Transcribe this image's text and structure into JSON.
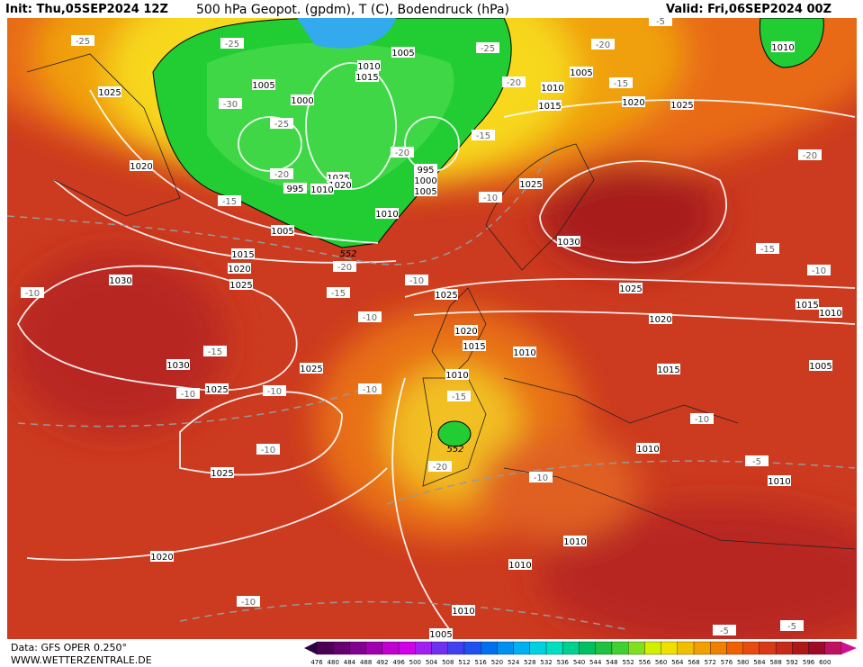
{
  "header": {
    "init": "Init: Thu,05SEP2024 12Z",
    "title": "500 hPa Geopot. (gpdm), T (C), Bodendruck (hPa)",
    "valid": "Valid: Fri,06SEP2024 00Z"
  },
  "footer": {
    "data": "Data: GFS OPER 0.250°",
    "site": "WWW.WETTERZENTRALE.DE"
  },
  "colorbar": {
    "labels": [
      "476",
      "480",
      "484",
      "488",
      "492",
      "496",
      "500",
      "504",
      "508",
      "512",
      "516",
      "520",
      "524",
      "528",
      "532",
      "536",
      "540",
      "544",
      "548",
      "552",
      "556",
      "560",
      "564",
      "568",
      "572",
      "576",
      "580",
      "584",
      "588",
      "592",
      "596",
      "600"
    ]
  },
  "map": {
    "pressure_labels": [
      "1005",
      "1010",
      "1015",
      "1005",
      "1000",
      "1025",
      "1020",
      "995",
      "1000",
      "1005",
      "1025",
      "1020",
      "995",
      "1010",
      "1010",
      "1005",
      "1015",
      "1020",
      "1025",
      "1030",
      "1030",
      "1025",
      "1025",
      "1025",
      "1020",
      "1005",
      "1010",
      "1015",
      "1020",
      "1025",
      "1025",
      "1030",
      "1025",
      "1025",
      "1020",
      "1020",
      "1015",
      "1010",
      "1010",
      "1015",
      "1010",
      "1015",
      "1010",
      "1005",
      "1010",
      "1010",
      "1010",
      "1010",
      "1005",
      "1010"
    ],
    "temperature_labels": [
      "-25",
      "-25",
      "-25",
      "-20",
      "-5",
      "-30",
      "-25",
      "-20",
      "-15",
      "-20",
      "-15",
      "-20",
      "-15",
      "-20",
      "-15",
      "-10",
      "-10",
      "-15",
      "-10",
      "-10",
      "-15",
      "-10",
      "-10",
      "-10",
      "-10",
      "-15",
      "-20",
      "-10",
      "-10",
      "-5",
      "-10",
      "-5",
      "-5",
      "-10",
      "-20"
    ],
    "height_labels": [
      "552",
      "552"
    ]
  }
}
